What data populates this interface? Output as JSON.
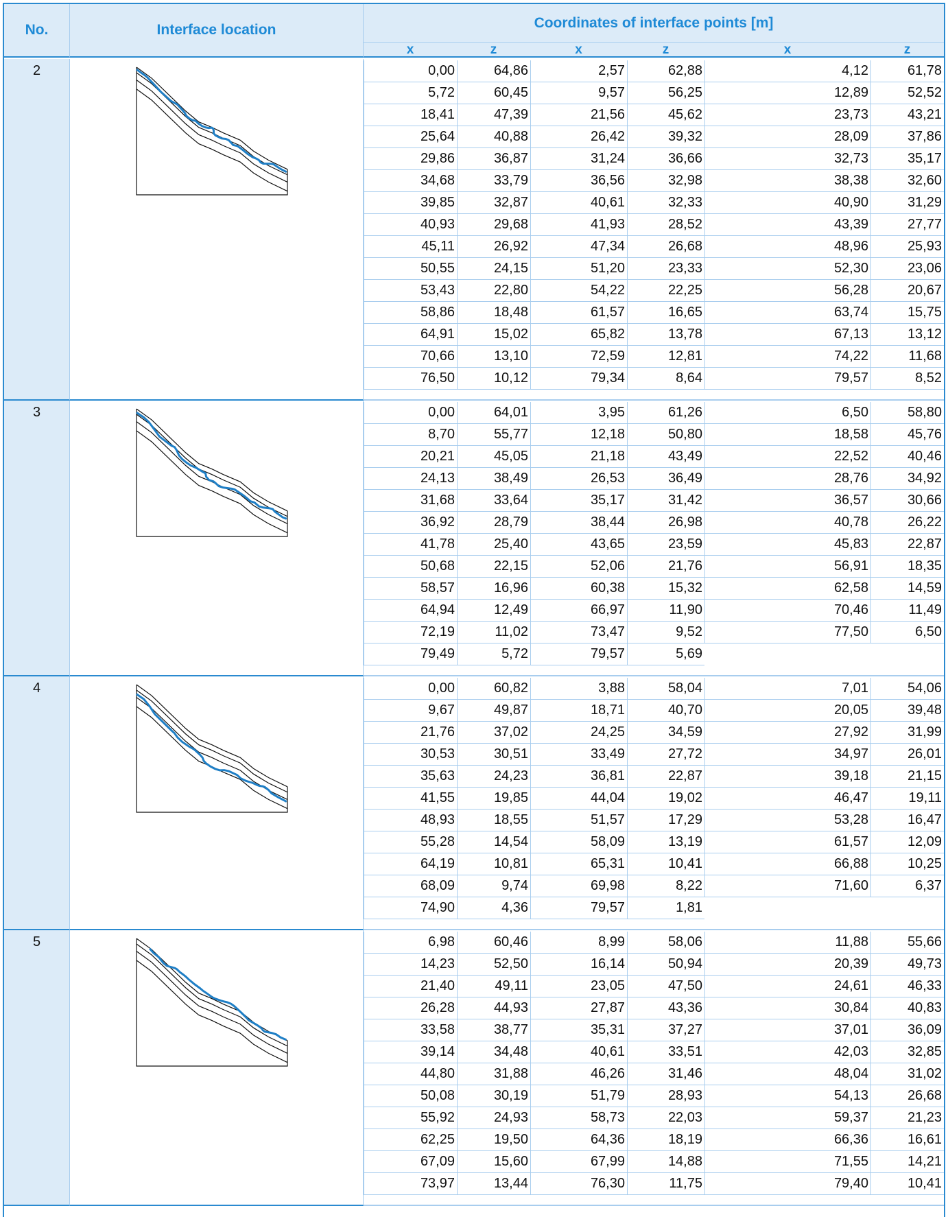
{
  "header": {
    "no": "No.",
    "location": "Interface location",
    "coordinates": "Coordinates of interface points [m]",
    "columns": [
      "x",
      "z",
      "x",
      "z",
      "x",
      "z"
    ]
  },
  "groups": [
    {
      "no": "2",
      "rows": [
        [
          "0,00",
          "64,86",
          "2,57",
          "62,88",
          "4,12",
          "61,78"
        ],
        [
          "5,72",
          "60,45",
          "9,57",
          "56,25",
          "12,89",
          "52,52"
        ],
        [
          "18,41",
          "47,39",
          "21,56",
          "45,62",
          "23,73",
          "43,21"
        ],
        [
          "25,64",
          "40,88",
          "26,42",
          "39,32",
          "28,09",
          "37,86"
        ],
        [
          "29,86",
          "36,87",
          "31,24",
          "36,66",
          "32,73",
          "35,17"
        ],
        [
          "34,68",
          "33,79",
          "36,56",
          "32,98",
          "38,38",
          "32,60"
        ],
        [
          "39,85",
          "32,87",
          "40,61",
          "32,33",
          "40,90",
          "31,29"
        ],
        [
          "40,93",
          "29,68",
          "41,93",
          "28,52",
          "43,39",
          "27,77"
        ],
        [
          "45,11",
          "26,92",
          "47,34",
          "26,68",
          "48,96",
          "25,93"
        ],
        [
          "50,55",
          "24,15",
          "51,20",
          "23,33",
          "52,30",
          "23,06"
        ],
        [
          "53,43",
          "22,80",
          "54,22",
          "22,25",
          "56,28",
          "20,67"
        ],
        [
          "58,86",
          "18,48",
          "61,57",
          "16,65",
          "63,74",
          "15,75"
        ],
        [
          "64,91",
          "15,02",
          "65,82",
          "13,78",
          "67,13",
          "13,12"
        ],
        [
          "70,66",
          "13,10",
          "72,59",
          "12,81",
          "74,22",
          "11,68"
        ],
        [
          "76,50",
          "10,12",
          "79,34",
          "8,64",
          "79,57",
          "8,52"
        ]
      ]
    },
    {
      "no": "3",
      "rows": [
        [
          "0,00",
          "64,01",
          "3,95",
          "61,26",
          "6,50",
          "58,80"
        ],
        [
          "8,70",
          "55,77",
          "12,18",
          "50,80",
          "18,58",
          "45,76"
        ],
        [
          "20,21",
          "45,05",
          "21,18",
          "43,49",
          "22,52",
          "40,46"
        ],
        [
          "24,13",
          "38,49",
          "26,53",
          "36,49",
          "28,76",
          "34,92"
        ],
        [
          "31,68",
          "33,64",
          "35,17",
          "31,42",
          "36,57",
          "30,66"
        ],
        [
          "36,92",
          "28,79",
          "38,44",
          "26,98",
          "40,78",
          "26,22"
        ],
        [
          "41,78",
          "25,40",
          "43,65",
          "23,59",
          "45,83",
          "22,87"
        ],
        [
          "50,68",
          "22,15",
          "52,06",
          "21,76",
          "56,91",
          "18,35"
        ],
        [
          "58,57",
          "16,96",
          "60,38",
          "15,32",
          "62,58",
          "14,59"
        ],
        [
          "64,94",
          "12,49",
          "66,97",
          "11,90",
          "70,46",
          "11,49"
        ],
        [
          "72,19",
          "11,02",
          "73,47",
          "9,52",
          "77,50",
          "6,50"
        ],
        [
          "79,49",
          "5,72",
          "79,57",
          "5,69"
        ]
      ]
    },
    {
      "no": "4",
      "rows": [
        [
          "0,00",
          "60,82",
          "3,88",
          "58,04",
          "7,01",
          "54,06"
        ],
        [
          "9,67",
          "49,87",
          "18,71",
          "40,70",
          "20,05",
          "39,48"
        ],
        [
          "21,76",
          "37,02",
          "24,25",
          "34,59",
          "27,92",
          "31,99"
        ],
        [
          "30,53",
          "30,51",
          "33,49",
          "27,72",
          "34,97",
          "26,01"
        ],
        [
          "35,63",
          "24,23",
          "36,81",
          "22,87",
          "39,18",
          "21,15"
        ],
        [
          "41,55",
          "19,85",
          "44,04",
          "19,02",
          "46,47",
          "19,11"
        ],
        [
          "48,93",
          "18,55",
          "51,57",
          "17,29",
          "53,28",
          "16,47"
        ],
        [
          "55,28",
          "14,54",
          "58,09",
          "13,19",
          "61,57",
          "12,09"
        ],
        [
          "64,19",
          "10,81",
          "65,31",
          "10,41",
          "66,88",
          "10,25"
        ],
        [
          "68,09",
          "9,74",
          "69,98",
          "8,22",
          "71,60",
          "6,37"
        ],
        [
          "74,90",
          "4,36",
          "79,57",
          "1,81"
        ]
      ]
    },
    {
      "no": "5",
      "rows": [
        [
          "6,98",
          "60,46",
          "8,99",
          "58,06",
          "11,88",
          "55,66"
        ],
        [
          "14,23",
          "52,50",
          "16,14",
          "50,94",
          "20,39",
          "49,73"
        ],
        [
          "21,40",
          "49,11",
          "23,05",
          "47,50",
          "24,61",
          "46,33"
        ],
        [
          "26,28",
          "44,93",
          "27,87",
          "43,36",
          "30,84",
          "40,83"
        ],
        [
          "33,58",
          "38,77",
          "35,31",
          "37,27",
          "37,01",
          "36,09"
        ],
        [
          "39,14",
          "34,48",
          "40,61",
          "33,51",
          "42,03",
          "32,85"
        ],
        [
          "44,80",
          "31,88",
          "46,26",
          "31,46",
          "48,04",
          "31,02"
        ],
        [
          "50,08",
          "30,19",
          "51,79",
          "28,93",
          "54,13",
          "26,68"
        ],
        [
          "55,92",
          "24,93",
          "58,73",
          "22,03",
          "59,37",
          "21,23"
        ],
        [
          "62,25",
          "19,50",
          "64,36",
          "18,19",
          "66,36",
          "16,61"
        ],
        [
          "67,09",
          "15,60",
          "67,99",
          "14,88",
          "71,55",
          "14,21"
        ],
        [
          "73,97",
          "13,44",
          "76,30",
          "11,75",
          "79,40",
          "10,41"
        ]
      ]
    }
  ]
}
